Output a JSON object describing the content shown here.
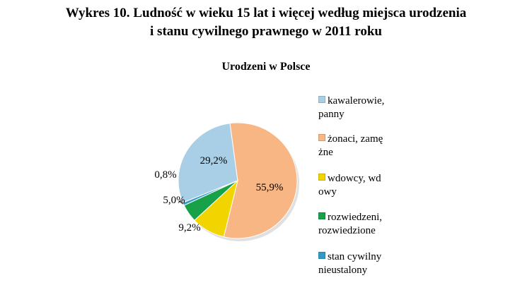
{
  "title_lines": [
    "Wykres 10. Ludność w wieku 15 lat i więcej według miejsca urodzenia",
    "i stanu cywilnego prawnego w 2011 roku"
  ],
  "chart_data": {
    "type": "pie",
    "title": "Urodzeni w Polsce",
    "legend_position": "right",
    "slices": [
      {
        "label": "kawalerowie,\npanny",
        "value": 29.2,
        "display": "29,2%",
        "color": "#a9cfe6"
      },
      {
        "label": "żonaci, zamę\nżne",
        "value": 55.9,
        "display": "55,9%",
        "color": "#f8b684"
      },
      {
        "label": "wdowcy, wd\nowy",
        "value": 9.2,
        "display": "9,2%",
        "color": "#f2d400"
      },
      {
        "label": "rozwiedzeni,\nrozwiedzione",
        "value": 5.0,
        "display": "5,0%",
        "color": "#17a24a"
      },
      {
        "label": "stan cywilny\nnieustalony",
        "value": 0.8,
        "display": "0,8%",
        "color": "#2f9cc6"
      }
    ]
  }
}
